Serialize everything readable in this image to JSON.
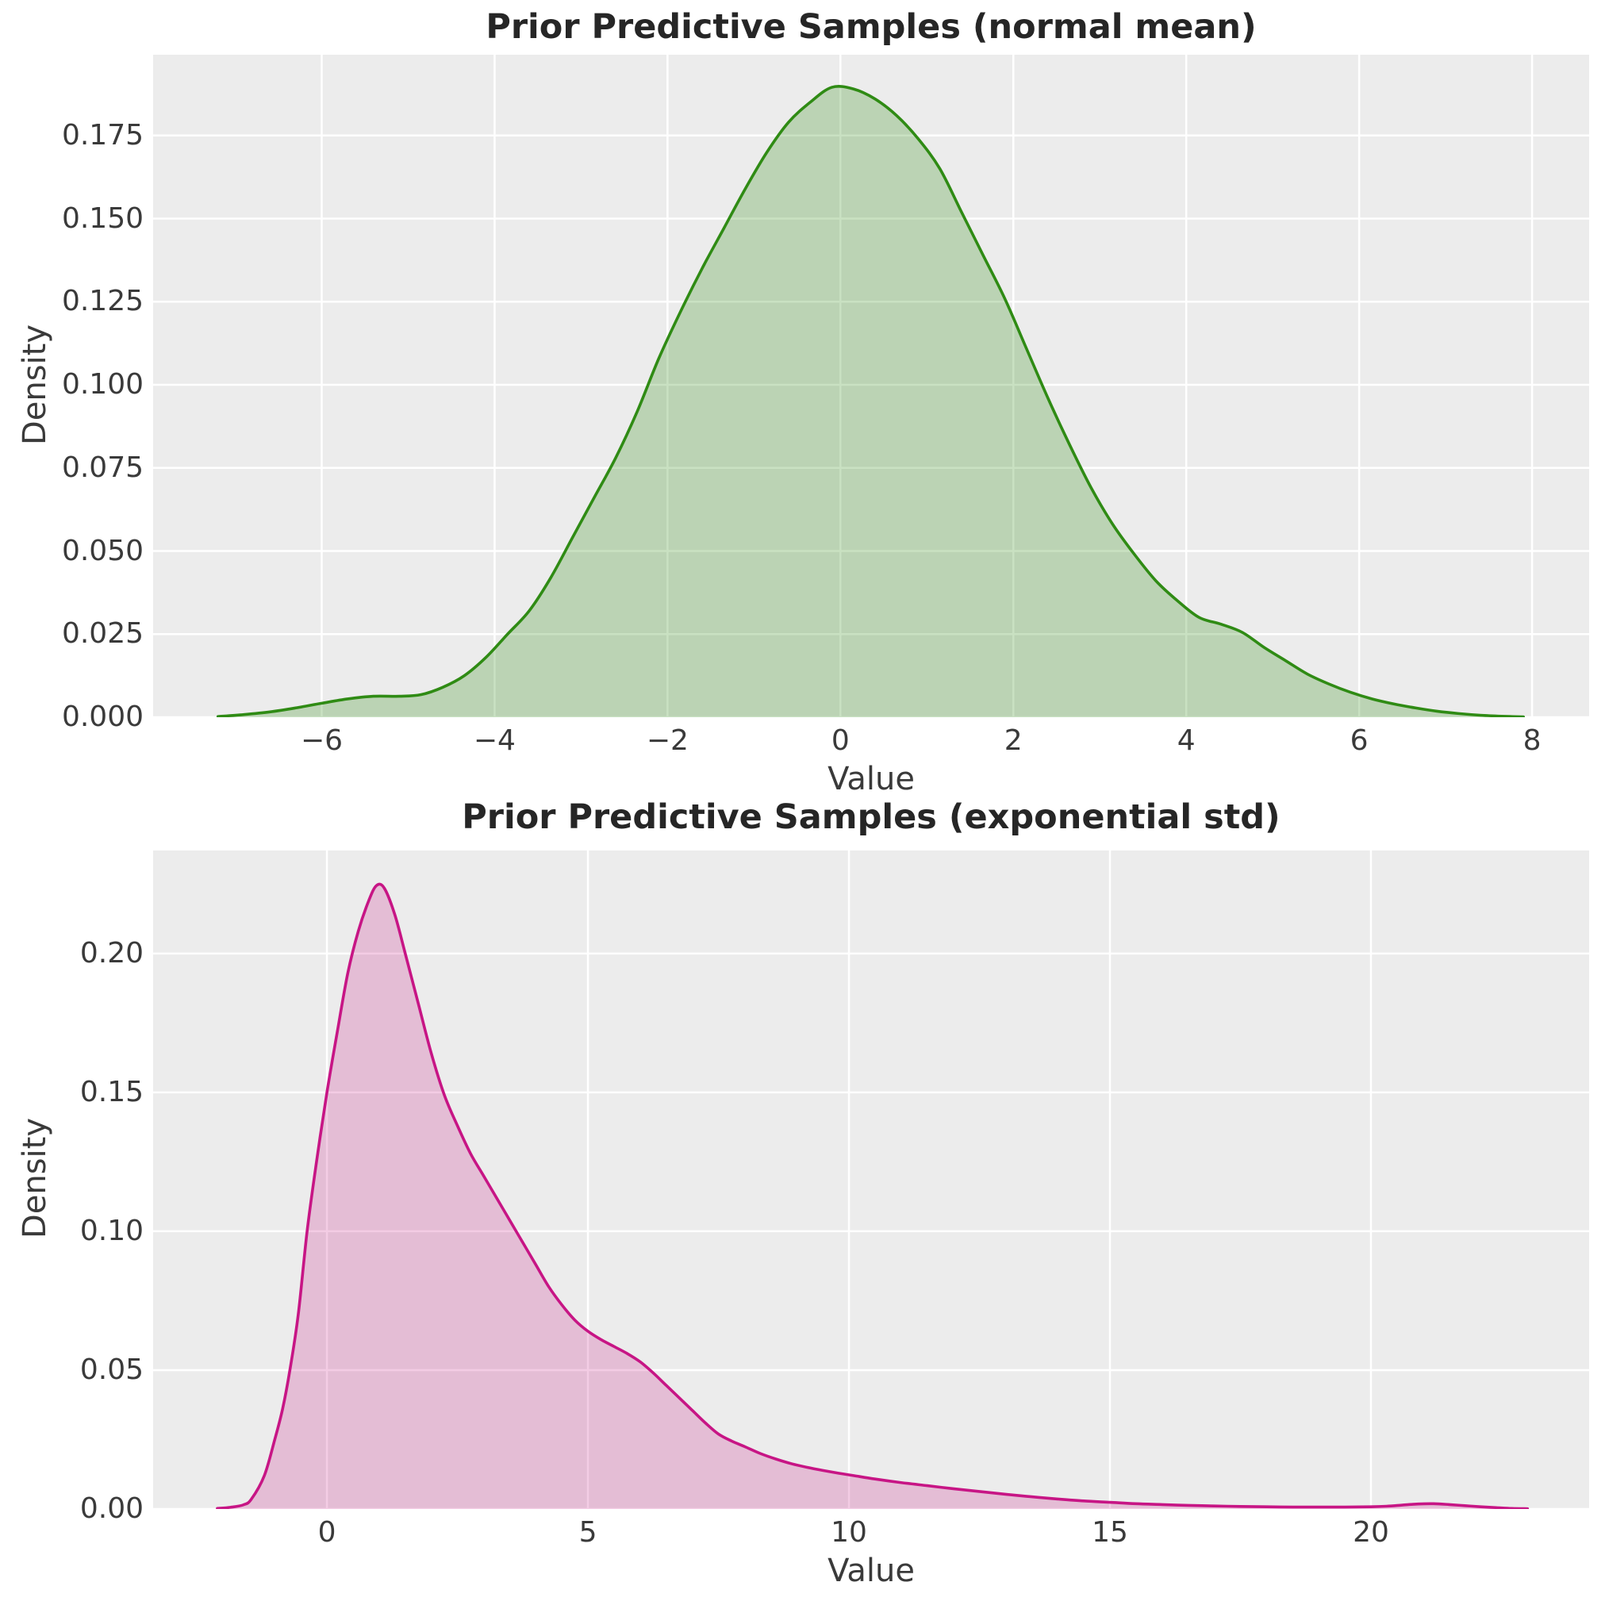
{
  "figure": {
    "background": "#ffffff",
    "axes_background": "#ececec",
    "grid_color": "#ffffff",
    "tick_color": "#3a3a3a",
    "title_color": "#262626"
  },
  "chart_data": [
    {
      "type": "area",
      "kind": "kde-density",
      "title": "Prior Predictive Samples (normal mean)",
      "xlabel": "Value",
      "ylabel": "Density",
      "line_color": "#2f8b14",
      "fill_opacity": 0.26,
      "grid": true,
      "legend": "none",
      "xlim": [
        -7.95,
        8.66
      ],
      "ylim": [
        0,
        0.1993
      ],
      "xticks": [
        -6,
        -4,
        -2,
        0,
        2,
        4,
        6,
        8
      ],
      "xtick_labels": [
        "−6",
        "−4",
        "−2",
        "0",
        "2",
        "4",
        "6",
        "8"
      ],
      "yticks": [
        0,
        0.025,
        0.05,
        0.075,
        0.1,
        0.125,
        0.15,
        0.175
      ],
      "ytick_labels": [
        "0.000",
        "0.025",
        "0.050",
        "0.075",
        "0.100",
        "0.125",
        "0.150",
        "0.175"
      ],
      "points": [
        [
          -7.2,
          0.0002
        ],
        [
          -6.9,
          0.0008
        ],
        [
          -6.6,
          0.0016
        ],
        [
          -6.3,
          0.0028
        ],
        [
          -6.0,
          0.0042
        ],
        [
          -5.7,
          0.0055
        ],
        [
          -5.4,
          0.0063
        ],
        [
          -5.1,
          0.0063
        ],
        [
          -4.85,
          0.0068
        ],
        [
          -4.6,
          0.009
        ],
        [
          -4.35,
          0.0125
        ],
        [
          -4.1,
          0.018
        ],
        [
          -3.85,
          0.025
        ],
        [
          -3.6,
          0.032
        ],
        [
          -3.35,
          0.042
        ],
        [
          -3.1,
          0.054
        ],
        [
          -2.85,
          0.066
        ],
        [
          -2.6,
          0.078
        ],
        [
          -2.35,
          0.092
        ],
        [
          -2.1,
          0.108
        ],
        [
          -1.85,
          0.122
        ],
        [
          -1.6,
          0.135
        ],
        [
          -1.35,
          0.147
        ],
        [
          -1.1,
          0.159
        ],
        [
          -0.85,
          0.17
        ],
        [
          -0.6,
          0.179
        ],
        [
          -0.35,
          0.185
        ],
        [
          -0.1,
          0.1895
        ],
        [
          0.15,
          0.189
        ],
        [
          0.4,
          0.186
        ],
        [
          0.65,
          0.181
        ],
        [
          0.9,
          0.174
        ],
        [
          1.15,
          0.165
        ],
        [
          1.4,
          0.152
        ],
        [
          1.65,
          0.139
        ],
        [
          1.9,
          0.126
        ],
        [
          2.15,
          0.111
        ],
        [
          2.4,
          0.096
        ],
        [
          2.65,
          0.082
        ],
        [
          2.9,
          0.069
        ],
        [
          3.15,
          0.058
        ],
        [
          3.4,
          0.049
        ],
        [
          3.65,
          0.041
        ],
        [
          3.9,
          0.035
        ],
        [
          4.15,
          0.03
        ],
        [
          4.4,
          0.028
        ],
        [
          4.65,
          0.0255
        ],
        [
          4.9,
          0.021
        ],
        [
          5.15,
          0.017
        ],
        [
          5.4,
          0.013
        ],
        [
          5.65,
          0.01
        ],
        [
          5.9,
          0.0075
        ],
        [
          6.15,
          0.0055
        ],
        [
          6.4,
          0.004
        ],
        [
          6.65,
          0.0028
        ],
        [
          6.9,
          0.0018
        ],
        [
          7.15,
          0.0011
        ],
        [
          7.4,
          0.0006
        ],
        [
          7.65,
          0.0003
        ],
        [
          7.9,
          0.0001
        ]
      ]
    },
    {
      "type": "area",
      "kind": "kde-density",
      "title": "Prior Predictive Samples (exponential std)",
      "xlabel": "Value",
      "ylabel": "Density",
      "line_color": "#c71585",
      "fill_opacity": 0.22,
      "grid": true,
      "legend": "none",
      "xlim": [
        -3.33,
        24.18
      ],
      "ylim": [
        0,
        0.2371
      ],
      "xticks": [
        0,
        5,
        10,
        15,
        20
      ],
      "xtick_labels": [
        "0",
        "5",
        "10",
        "15",
        "20"
      ],
      "yticks": [
        0,
        0.05,
        0.1,
        0.15,
        0.2
      ],
      "ytick_labels": [
        "0.00",
        "0.05",
        "0.10",
        "0.15",
        "0.20"
      ],
      "points": [
        [
          -2.1,
          0.0002
        ],
        [
          -1.85,
          0.0006
        ],
        [
          -1.6,
          0.0015
        ],
        [
          -1.45,
          0.0035
        ],
        [
          -1.2,
          0.012
        ],
        [
          -1.0,
          0.025
        ],
        [
          -0.85,
          0.036
        ],
        [
          -0.71,
          0.05
        ],
        [
          -0.55,
          0.07
        ],
        [
          -0.38,
          0.1
        ],
        [
          -0.2,
          0.125
        ],
        [
          0.0,
          0.15
        ],
        [
          0.2,
          0.172
        ],
        [
          0.4,
          0.193
        ],
        [
          0.6,
          0.208
        ],
        [
          0.8,
          0.219
        ],
        [
          0.95,
          0.2245
        ],
        [
          1.1,
          0.2235
        ],
        [
          1.3,
          0.214
        ],
        [
          1.5,
          0.2
        ],
        [
          1.75,
          0.182
        ],
        [
          2.0,
          0.164
        ],
        [
          2.25,
          0.149
        ],
        [
          2.5,
          0.138
        ],
        [
          2.75,
          0.128
        ],
        [
          3.0,
          0.12
        ],
        [
          3.25,
          0.112
        ],
        [
          3.5,
          0.104
        ],
        [
          3.75,
          0.096
        ],
        [
          4.0,
          0.088
        ],
        [
          4.25,
          0.08
        ],
        [
          4.5,
          0.0735
        ],
        [
          4.75,
          0.068
        ],
        [
          5.0,
          0.064
        ],
        [
          5.25,
          0.061
        ],
        [
          5.5,
          0.0585
        ],
        [
          5.75,
          0.056
        ],
        [
          6.0,
          0.053
        ],
        [
          6.25,
          0.049
        ],
        [
          6.5,
          0.0445
        ],
        [
          6.75,
          0.04
        ],
        [
          7.0,
          0.0355
        ],
        [
          7.25,
          0.031
        ],
        [
          7.5,
          0.027
        ],
        [
          7.75,
          0.0245
        ],
        [
          8.0,
          0.0225
        ],
        [
          8.3,
          0.02
        ],
        [
          8.6,
          0.018
        ],
        [
          8.9,
          0.0163
        ],
        [
          9.2,
          0.015
        ],
        [
          9.5,
          0.0139
        ],
        [
          9.8,
          0.0129
        ],
        [
          10.1,
          0.012
        ],
        [
          10.5,
          0.0108
        ],
        [
          11.0,
          0.0095
        ],
        [
          11.5,
          0.0084
        ],
        [
          12.0,
          0.0073
        ],
        [
          12.5,
          0.0063
        ],
        [
          13.0,
          0.0053
        ],
        [
          13.5,
          0.0044
        ],
        [
          14.0,
          0.0036
        ],
        [
          14.5,
          0.0029
        ],
        [
          15.0,
          0.0024
        ],
        [
          15.5,
          0.0019
        ],
        [
          16.0,
          0.0016
        ],
        [
          16.5,
          0.0013
        ],
        [
          17.0,
          0.0011
        ],
        [
          17.5,
          0.0009
        ],
        [
          18.0,
          0.0008
        ],
        [
          18.5,
          0.0007
        ],
        [
          19.0,
          0.0007
        ],
        [
          19.5,
          0.0007
        ],
        [
          20.0,
          0.0008
        ],
        [
          20.3,
          0.001
        ],
        [
          20.6,
          0.0014
        ],
        [
          20.9,
          0.0018
        ],
        [
          21.2,
          0.0019
        ],
        [
          21.5,
          0.0016
        ],
        [
          21.8,
          0.0012
        ],
        [
          22.1,
          0.0008
        ],
        [
          22.4,
          0.0005
        ],
        [
          22.7,
          0.0002
        ],
        [
          23.0,
          0.0001
        ]
      ]
    }
  ]
}
